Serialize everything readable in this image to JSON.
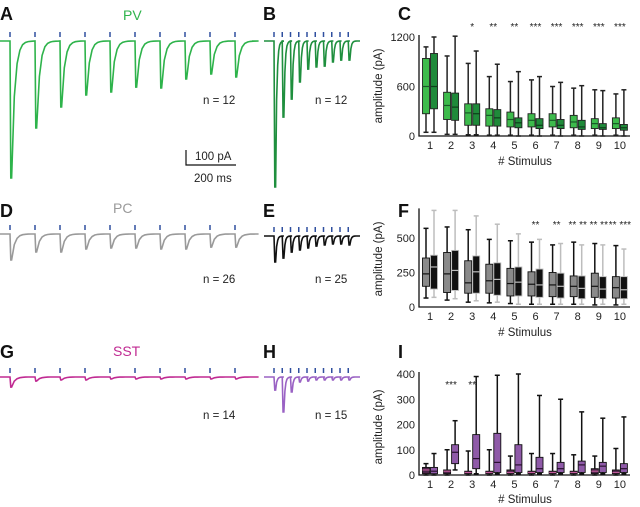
{
  "panels": {
    "A": "A",
    "B": "B",
    "C": "C",
    "D": "D",
    "E": "E",
    "F": "F",
    "G": "G",
    "H": "H",
    "I": "I"
  },
  "colors": {
    "stim_tick": "#2f4f9f",
    "pv": "#2eb34b",
    "pv_fast": "#1f8f3e",
    "pc": "#9a9a9a",
    "pc_fast": "#111111",
    "sst": "#c02a92",
    "sst_fast": "#9a62c4"
  },
  "scale_bar": {
    "amplitude_label": "100 pA",
    "time_label": "200 ms",
    "amplitude_pA": 100,
    "time_ms": 200
  },
  "traces": [
    {
      "id": "A",
      "title": "PV",
      "color_key": "pv",
      "n_label": "n = 12",
      "interval_ms": 100,
      "amplitudes_pA": [
        913,
        580,
        440,
        360,
        340,
        307,
        313,
        253,
        220,
        240
      ]
    },
    {
      "id": "B",
      "title": "",
      "color_key": "pv_fast",
      "n_label": "n = 12",
      "interval_ms": 33,
      "amplitudes_pA": [
        973,
        507,
        387,
        273,
        187,
        173,
        167,
        140,
        127,
        127
      ]
    },
    {
      "id": "D",
      "title": "PC",
      "color_key": "pc",
      "n_label": "n = 26",
      "interval_ms": 100,
      "amplitudes_pA": [
        173,
        120,
        120,
        100,
        93,
        93,
        100,
        100,
        87,
        87
      ]
    },
    {
      "id": "E",
      "title": "",
      "color_key": "pc_fast",
      "n_label": "n = 25",
      "interval_ms": 33,
      "amplitudes_pA": [
        173,
        147,
        107,
        93,
        80,
        67,
        60,
        53,
        53,
        60
      ]
    },
    {
      "id": "G",
      "title": "SST",
      "color_key": "sst",
      "n_label": "n = 14",
      "interval_ms": 100,
      "amplitudes_pA": [
        67,
        27,
        20,
        20,
        13,
        13,
        13,
        13,
        13,
        13
      ]
    },
    {
      "id": "H",
      "title": "",
      "color_key": "sst_fast",
      "n_label": "n = 15",
      "interval_ms": 33,
      "amplitudes_pA": [
        87,
        233,
        100,
        33,
        27,
        20,
        20,
        20,
        20,
        20
      ]
    }
  ],
  "chart_data": [
    {
      "panel": "C",
      "type": "boxplot",
      "xlabel": "# Stimulus",
      "ylabel": "amplitude (pA)",
      "categories": [
        "1",
        "2",
        "3",
        "4",
        "5",
        "6",
        "7",
        "8",
        "9",
        "10"
      ],
      "ylim": [
        0,
        1200
      ],
      "yticks": [
        0,
        600,
        1200
      ],
      "significance": [
        "",
        "",
        "*",
        "**",
        "**",
        "***",
        "***",
        "***",
        "***",
        "***"
      ],
      "series": [
        {
          "name": "slow",
          "box_color": "#3dbb4c",
          "whisker_color": "#222",
          "median_color": "#1a5a28",
          "boxes": [
            [
              45,
              270,
              600,
              940,
              1080
            ],
            [
              20,
              200,
              370,
              530,
              970
            ],
            [
              15,
              130,
              280,
              390,
              880
            ],
            [
              10,
              120,
              250,
              330,
              720
            ],
            [
              10,
              110,
              200,
              290,
              660
            ],
            [
              10,
              110,
              190,
              270,
              680
            ],
            [
              10,
              110,
              190,
              270,
              600
            ],
            [
              10,
              100,
              170,
              250,
              580
            ],
            [
              10,
              90,
              150,
              210,
              560
            ],
            [
              10,
              90,
              150,
              220,
              510
            ]
          ]
        },
        {
          "name": "fast",
          "box_color": "#1f8a3a",
          "whisker_color": "#222",
          "median_color": "#0d3f1a",
          "boxes": [
            [
              45,
              330,
              600,
              1000,
              1200
            ],
            [
              20,
              190,
              350,
              520,
              1210
            ],
            [
              15,
              130,
              270,
              390,
              1030
            ],
            [
              10,
              120,
              220,
              320,
              870
            ],
            [
              0,
              100,
              160,
              220,
              780
            ],
            [
              0,
              90,
              130,
              210,
              720
            ],
            [
              0,
              90,
              130,
              200,
              650
            ],
            [
              0,
              80,
              110,
              190,
              610
            ],
            [
              0,
              80,
              100,
              150,
              550
            ],
            [
              0,
              70,
              100,
              140,
              560
            ]
          ]
        }
      ]
    },
    {
      "panel": "F",
      "type": "boxplot",
      "xlabel": "# Stimulus",
      "ylabel": "amplitude (pA)",
      "categories": [
        "1",
        "2",
        "3",
        "4",
        "5",
        "6",
        "7",
        "8",
        "9",
        "10"
      ],
      "ylim": [
        0,
        700
      ],
      "yticks": [
        0,
        250,
        500
      ],
      "significance": [
        "",
        "",
        "",
        "",
        "",
        "**",
        "**",
        "** **",
        "** **",
        "** ***"
      ],
      "series": [
        {
          "name": "slow",
          "box_color": "#8a8a8a",
          "whisker_color": "#111",
          "median_color": "#111",
          "boxes": [
            [
              65,
              150,
              240,
              355,
              570
            ],
            [
              50,
              105,
              240,
              395,
              580
            ],
            [
              35,
              100,
              175,
              335,
              560
            ],
            [
              30,
              100,
              190,
              310,
              490
            ],
            [
              25,
              80,
              170,
              280,
              480
            ],
            [
              20,
              80,
              165,
              255,
              470
            ],
            [
              20,
              75,
              160,
              250,
              450
            ],
            [
              20,
              75,
              150,
              225,
              470
            ],
            [
              15,
              70,
              150,
              245,
              460
            ],
            [
              15,
              65,
              140,
              220,
              445
            ]
          ]
        },
        {
          "name": "fast",
          "box_color": "#111",
          "whisker_color": "#bdbdbd",
          "median_color": "#bdbdbd",
          "boxes": [
            [
              70,
              130,
              290,
              375,
              700
            ],
            [
              60,
              120,
              265,
              410,
              700
            ],
            [
              45,
              100,
              255,
              370,
              660
            ],
            [
              35,
              85,
              200,
              320,
              600
            ],
            [
              20,
              80,
              180,
              290,
              530
            ],
            [
              20,
              70,
              160,
              275,
              490
            ],
            [
              20,
              65,
              150,
              245,
              460
            ],
            [
              20,
              60,
              135,
              225,
              450
            ],
            [
              20,
              60,
              130,
              220,
              450
            ],
            [
              20,
              60,
              125,
              220,
              420
            ]
          ]
        }
      ]
    },
    {
      "panel": "I",
      "type": "boxplot",
      "xlabel": "# Stimulus",
      "ylabel": "amplitude (pA)",
      "categories": [
        "1",
        "2",
        "3",
        "4",
        "5",
        "6",
        "7",
        "8",
        "9",
        "10"
      ],
      "ylim": [
        0,
        400
      ],
      "yticks": [
        0,
        100,
        200,
        300,
        400
      ],
      "significance": [
        "",
        "***",
        "**",
        "",
        "",
        "",
        "",
        "",
        "",
        ""
      ],
      "series": [
        {
          "name": "slow",
          "box_color": "#4a2548",
          "whisker_color": "#111",
          "median_color": "#c05a9a",
          "boxes": [
            [
              0,
              5,
              20,
              30,
              45
            ],
            [
              0,
              5,
              15,
              20,
              100
            ],
            [
              0,
              5,
              10,
              15,
              95
            ],
            [
              0,
              5,
              10,
              15,
              100
            ],
            [
              0,
              5,
              10,
              20,
              75
            ],
            [
              0,
              5,
              10,
              15,
              85
            ],
            [
              0,
              5,
              10,
              15,
              85
            ],
            [
              0,
              5,
              10,
              15,
              80
            ],
            [
              0,
              5,
              15,
              25,
              75
            ],
            [
              0,
              5,
              10,
              20,
              105
            ]
          ]
        },
        {
          "name": "fast",
          "box_color": "#8f5aa8",
          "whisker_color": "#111",
          "median_color": "#2a1030",
          "boxes": [
            [
              0,
              5,
              15,
              30,
              85
            ],
            [
              20,
              45,
              90,
              120,
              215
            ],
            [
              5,
              25,
              65,
              160,
              390
            ],
            [
              5,
              10,
              50,
              165,
              395
            ],
            [
              5,
              10,
              40,
              120,
              400
            ],
            [
              5,
              10,
              25,
              70,
              315
            ],
            [
              5,
              10,
              25,
              50,
              300
            ],
            [
              5,
              10,
              40,
              55,
              250
            ],
            [
              5,
              10,
              35,
              50,
              225
            ],
            [
              5,
              10,
              25,
              45,
              230
            ]
          ]
        }
      ]
    }
  ]
}
